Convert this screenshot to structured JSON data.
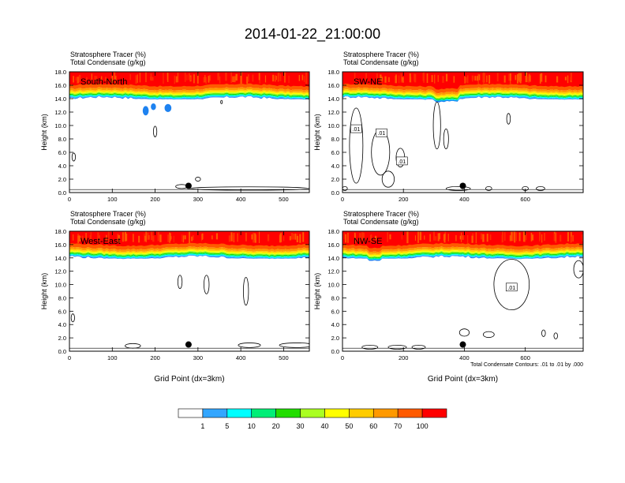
{
  "title": "2014-01-22_21:00:00",
  "colors": {
    "levels": [
      "#ffffff",
      "#1e82f0",
      "#33a6ff",
      "#00ffff",
      "#00ee77",
      "#22dd00",
      "#aaff22",
      "#ffff00",
      "#ffcc00",
      "#ff9900",
      "#ff5a00",
      "#ff0000"
    ],
    "contour": "#000000",
    "marker": "#000000"
  },
  "chart_data": [
    {
      "type": "heatmap",
      "label": "South-North",
      "heading_line1": "Stratosphere Tracer   (%)",
      "heading_line2": "Total Condensate   (g/kg)",
      "xlabel": "",
      "ylabel": "Height (km)",
      "xlim": [
        0,
        560
      ],
      "ylim": [
        0,
        18
      ],
      "xticks": [
        "0",
        "100",
        "200",
        "300",
        "400",
        "500"
      ],
      "yticks": [
        "0.0",
        "2.0",
        "4.0",
        "6.0",
        "8.0",
        "10.0",
        "12.0",
        "14.0",
        "16.0",
        "18.0"
      ],
      "tracer_base_km": 14.3,
      "marker": {
        "x": 278,
        "z": 1.0
      },
      "contour_labels": []
    },
    {
      "type": "heatmap",
      "label": "SW-NE",
      "heading_line1": "Stratosphere Tracer   (%)",
      "heading_line2": "Total Condensate   (g/kg)",
      "xlabel": "",
      "ylabel": "Height (km)",
      "xlim": [
        0,
        790
      ],
      "ylim": [
        0,
        18
      ],
      "xticks": [
        "0",
        "200",
        "400",
        "600"
      ],
      "yticks": [
        "0.0",
        "2.0",
        "4.0",
        "6.0",
        "8.0",
        "10.0",
        "12.0",
        "14.0",
        "16.0",
        "18.0"
      ],
      "tracer_base_km": 14.4,
      "marker": {
        "x": 395,
        "z": 1.0
      },
      "contour_labels": [
        {
          "text": ".01",
          "x": 45,
          "z": 9.4
        },
        {
          "text": ".01",
          "x": 128,
          "z": 8.8
        },
        {
          "text": ".01",
          "x": 195,
          "z": 4.6
        }
      ]
    },
    {
      "type": "heatmap",
      "label": "West-East",
      "heading_line1": "Stratosphere Tracer   (%)",
      "heading_line2": "Total Condensate   (g/kg)",
      "xlabel": "Grid Point (dx=3km)",
      "ylabel": "Height (km)",
      "xlim": [
        0,
        560
      ],
      "ylim": [
        0,
        18
      ],
      "xticks": [
        "0",
        "100",
        "200",
        "300",
        "400",
        "500"
      ],
      "yticks": [
        "0.0",
        "2.0",
        "4.0",
        "6.0",
        "8.0",
        "10.0",
        "12.0",
        "14.0",
        "16.0",
        "18.0"
      ],
      "tracer_base_km": 14.3,
      "marker": {
        "x": 278,
        "z": 1.0
      },
      "contour_labels": []
    },
    {
      "type": "heatmap",
      "label": "NW-SE",
      "heading_line1": "Stratosphere Tracer   (%)",
      "heading_line2": "Total Condensate   (g/kg)",
      "xlabel": "Grid Point (dx=3km)",
      "ylabel": "Height (km)",
      "xlim": [
        0,
        790
      ],
      "ylim": [
        0,
        18
      ],
      "xticks": [
        "0",
        "200",
        "400",
        "600"
      ],
      "yticks": [
        "0.0",
        "2.0",
        "4.0",
        "6.0",
        "8.0",
        "10.0",
        "12.0",
        "14.0",
        "16.0",
        "18.0"
      ],
      "tracer_base_km": 14.4,
      "marker": {
        "x": 395,
        "z": 1.0
      },
      "contour_labels": [
        {
          "text": ".01",
          "x": 555,
          "z": 9.5
        }
      ],
      "footnote": "Total Condensate Contours: .01 to .01 by .000"
    }
  ],
  "colorbar": {
    "label_type": "Stratosphere Tracer (%)",
    "levels": [
      "1",
      "5",
      "10",
      "20",
      "30",
      "40",
      "50",
      "60",
      "70",
      "100"
    ]
  }
}
